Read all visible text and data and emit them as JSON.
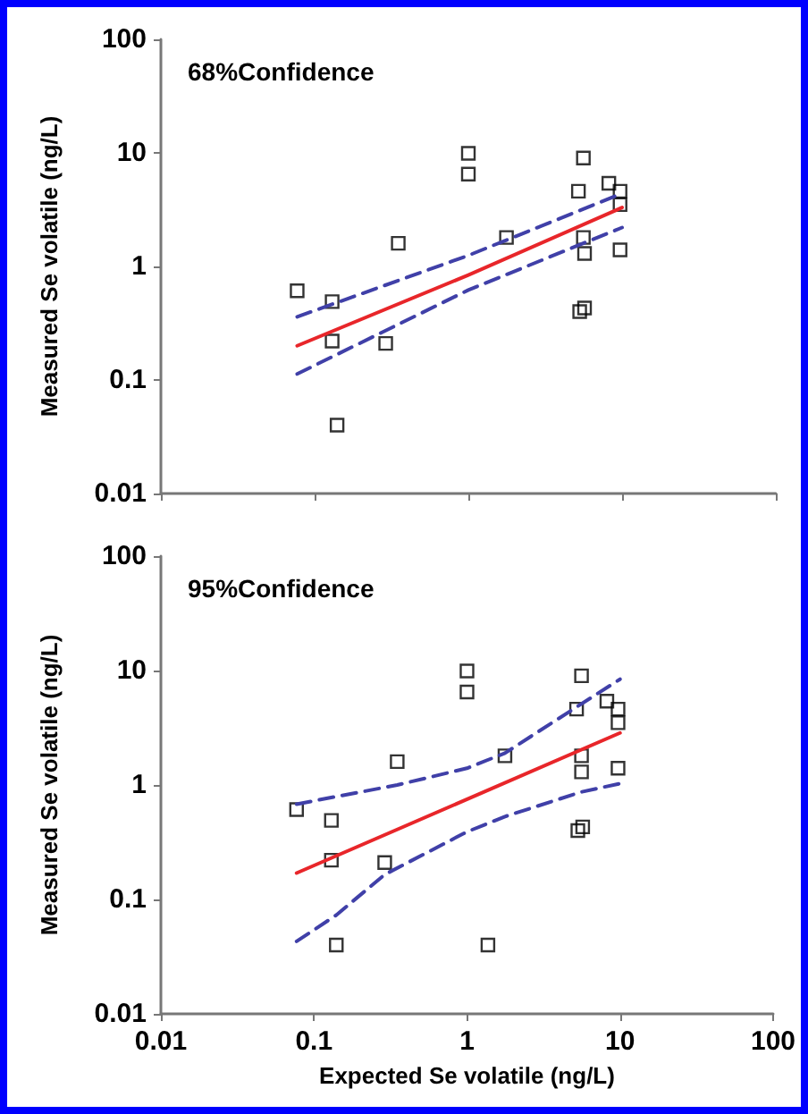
{
  "chart_data": [
    {
      "type": "scatter",
      "title": "68%Confidence",
      "ylabel": "Measured Se volatile (ng/L)",
      "log": "xy",
      "xlim": [
        0.01,
        100
      ],
      "ylim": [
        0.01,
        100
      ],
      "xticks": [
        0.01,
        0.1,
        1,
        10,
        100
      ],
      "yticks": [
        0.01,
        0.1,
        1,
        10,
        100
      ],
      "tick_labels": "y",
      "grid": false,
      "marker": "square",
      "series": [
        {
          "color": "#000000",
          "x": [
            0.077,
            0.13,
            0.13,
            0.14,
            0.29,
            0.35,
            1.0,
            1.0,
            1.77,
            5.2,
            5.6,
            5.6,
            5.7,
            5.3,
            5.7,
            8.2,
            9.7,
            9.7,
            9.7
          ],
          "values": [
            0.61,
            0.49,
            0.22,
            0.04,
            0.21,
            1.6,
            9.9,
            6.5,
            1.8,
            4.6,
            9.0,
            1.8,
            1.3,
            0.4,
            0.43,
            5.4,
            4.6,
            3.5,
            1.4
          ]
        },
        {
          "type": "line",
          "color": "#e8262a",
          "marker": "none",
          "line_style": "solid",
          "x": [
            0.077,
            1,
            10
          ],
          "values": [
            0.2,
            0.84,
            3.3
          ]
        },
        {
          "type": "line",
          "color": "#4040a8",
          "marker": "none",
          "line_style": "dashed",
          "x": [
            0.077,
            1,
            10
          ],
          "values": [
            0.36,
            1.25,
            4.4
          ]
        },
        {
          "type": "line",
          "color": "#4040a8",
          "marker": "none",
          "line_style": "dashed",
          "x": [
            0.077,
            1,
            10
          ],
          "values": [
            0.113,
            0.62,
            2.2
          ]
        }
      ]
    },
    {
      "type": "scatter",
      "title": "95%Confidence",
      "xlabel": "Expected Se volatile (ng/L)",
      "ylabel": "Measured Se volatile (ng/L)",
      "log": "xy",
      "xlim": [
        0.01,
        100
      ],
      "ylim": [
        0.01,
        100
      ],
      "xticks": [
        0.01,
        0.1,
        1,
        10,
        100
      ],
      "yticks": [
        0.01,
        0.1,
        1,
        10,
        100
      ],
      "grid": false,
      "marker": "square",
      "series": [
        {
          "color": "#000000",
          "x": [
            0.077,
            0.13,
            0.13,
            0.14,
            0.29,
            0.35,
            1.0,
            1.0,
            1.37,
            1.77,
            5.2,
            5.6,
            5.6,
            5.6,
            5.3,
            5.7,
            8.2,
            9.7,
            9.7,
            9.7
          ],
          "values": [
            0.61,
            0.49,
            0.22,
            0.04,
            0.21,
            1.6,
            9.9,
            6.5,
            0.04,
            1.8,
            4.6,
            9.0,
            1.8,
            1.3,
            0.4,
            0.43,
            5.4,
            4.6,
            3.5,
            1.4
          ]
        },
        {
          "type": "line",
          "color": "#e8262a",
          "marker": "none",
          "line_style": "solid",
          "x": [
            0.077,
            10
          ],
          "values": [
            0.17,
            2.85
          ]
        },
        {
          "type": "line",
          "color": "#4040a8",
          "marker": "none",
          "line_style": "dashed",
          "x": [
            0.077,
            0.35,
            1,
            1.77,
            5.2,
            10
          ],
          "values": [
            0.68,
            1.0,
            1.4,
            1.9,
            4.8,
            8.4
          ]
        },
        {
          "type": "line",
          "color": "#4040a8",
          "marker": "none",
          "line_style": "dashed",
          "x": [
            0.077,
            0.14,
            0.29,
            1,
            1.77,
            5.6,
            10
          ],
          "values": [
            0.043,
            0.073,
            0.165,
            0.39,
            0.53,
            0.87,
            1.03
          ]
        }
      ]
    }
  ]
}
